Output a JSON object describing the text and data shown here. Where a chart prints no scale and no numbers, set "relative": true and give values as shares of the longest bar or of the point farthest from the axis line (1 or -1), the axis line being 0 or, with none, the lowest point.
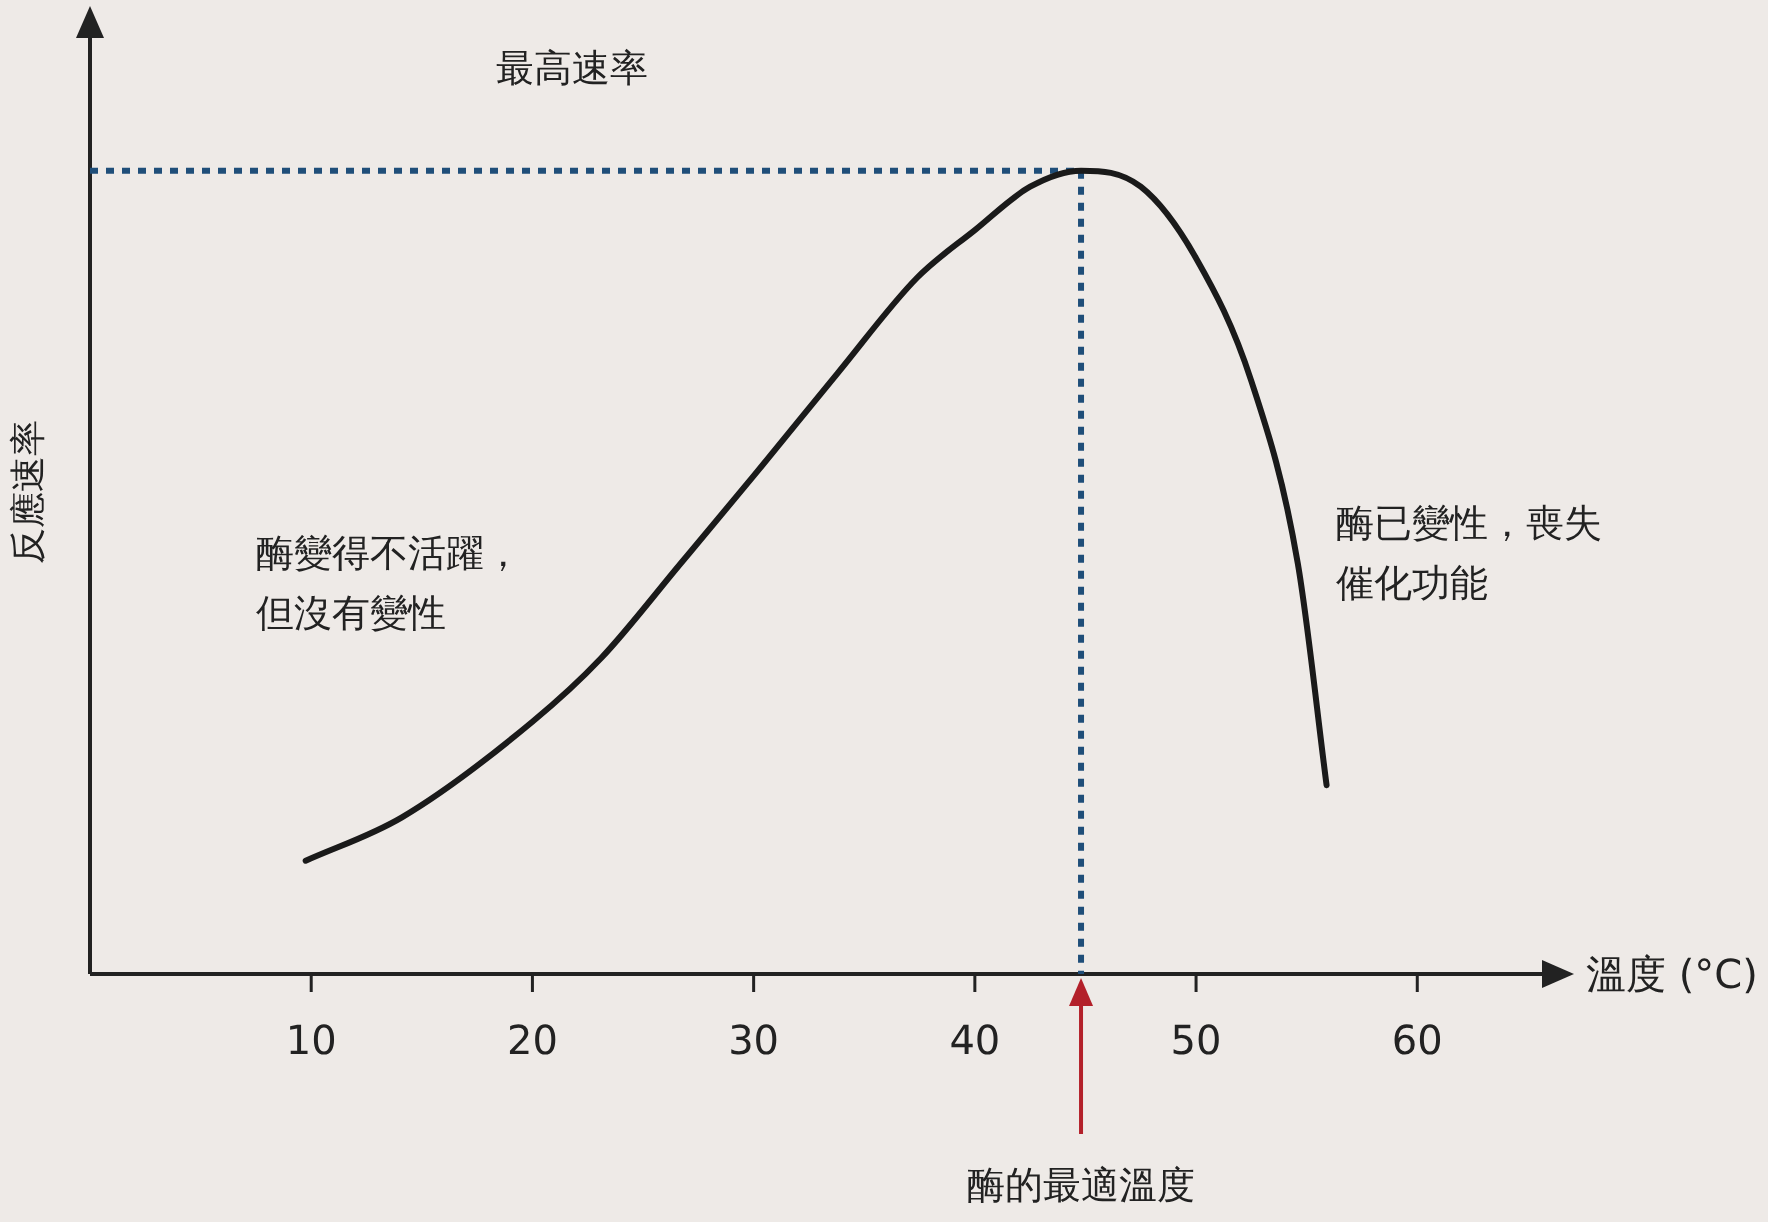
{
  "chart_data": {
    "type": "line",
    "relative": true,
    "xlabel": "溫度 (°C)",
    "ylabel": "反應速率",
    "x": [
      9.75,
      14.1,
      20,
      23.1,
      26.7,
      30,
      33.8,
      37.4,
      40,
      42.5,
      44.8,
      47.5,
      50,
      52.5,
      54.6,
      55.9
    ],
    "series": [
      {
        "color": "#1a1a1a",
        "values": [
          0.141,
          0.195,
          0.314,
          0.393,
          0.511,
          0.62,
          0.748,
          0.867,
          0.926,
          0.98,
          1,
          0.98,
          0.891,
          0.738,
          0.511,
          0.235
        ]
      }
    ],
    "xlim": [
      0,
      66
    ],
    "xticks": [
      10,
      20,
      30,
      40,
      50,
      60
    ],
    "ref_lines": [
      {
        "axis": "y",
        "value": 1,
        "label": "最高速率",
        "color": "#1f4e79",
        "line_style": "dotted"
      },
      {
        "axis": "x",
        "value": 44.8,
        "color": "#1f4e79",
        "line_style": "dotted"
      }
    ],
    "annotations": [
      "酶變得不活躍，但沒有變性",
      "酶已變性，喪失催化功能",
      "酶的最適溫度"
    ],
    "grid": false,
    "marker": "none",
    "line_style": "solid"
  }
}
